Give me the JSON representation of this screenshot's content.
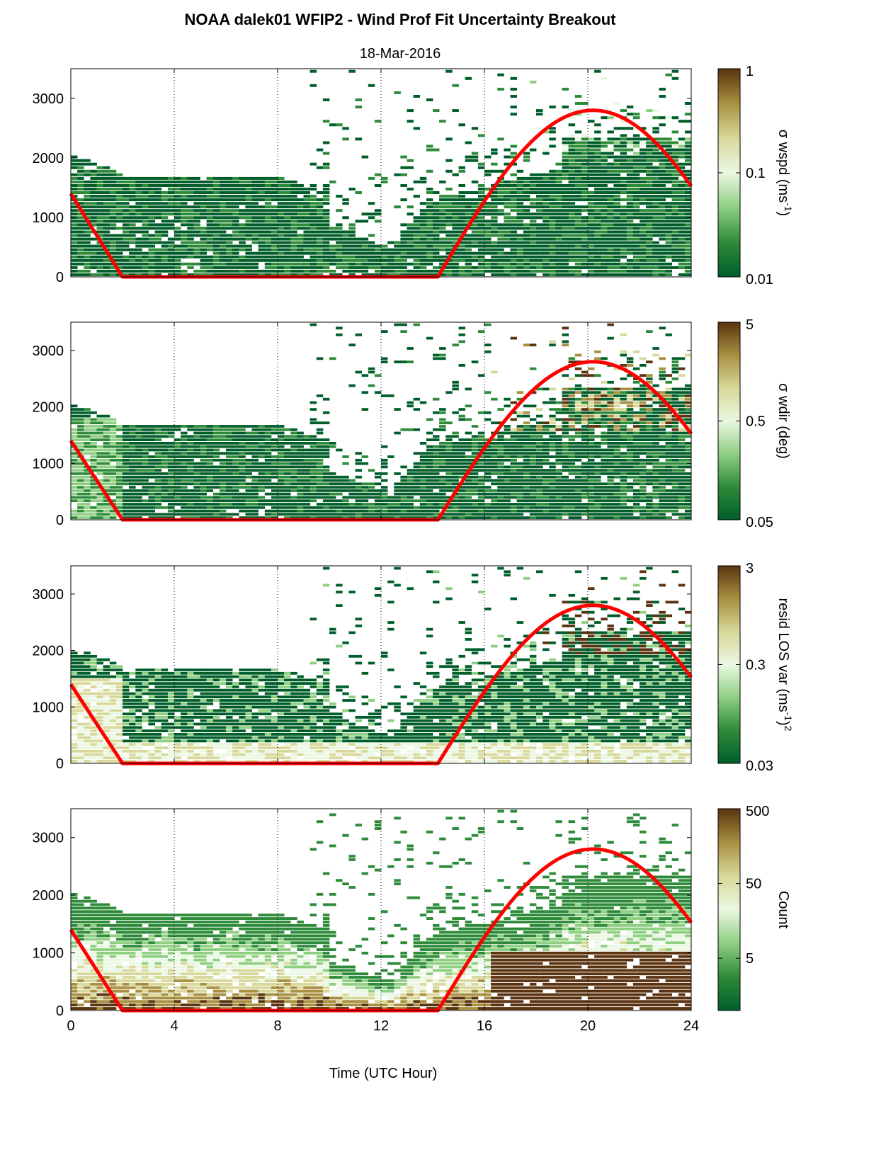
{
  "figure": {
    "title": "NOAA dalek01 WFIP2 - Wind Prof Fit Uncertainty Breakout",
    "subtitle": "18-Mar-2016",
    "xlabel": "Time (UTC Hour)"
  },
  "chart_data": [
    {
      "type": "heatmap",
      "xlim": [
        0,
        24
      ],
      "ylim": [
        0,
        3500
      ],
      "xticks": [
        0,
        4,
        8,
        12,
        16,
        20,
        24
      ],
      "yticks": [
        0,
        1000,
        2000,
        3000
      ],
      "grid": "vertical dotted lines at 4, 8, 12, 16, 20",
      "overlay": {
        "name": "",
        "color": "#ff0000",
        "points": [
          [
            0,
            1400
          ],
          [
            2,
            0
          ],
          [
            14.2,
            0
          ],
          [
            16,
            1200
          ],
          [
            18,
            2300
          ],
          [
            20.2,
            2800
          ],
          [
            22,
            2500
          ],
          [
            24,
            1600
          ]
        ]
      },
      "colorbar": {
        "label": "σ wspd (ms",
        "label_sup": "-1",
        "label_end": ")",
        "scale": "log",
        "ticks": [
          "1",
          "0.1",
          "0.01"
        ],
        "range": [
          0.01,
          1
        ]
      }
    },
    {
      "type": "heatmap",
      "xlim": [
        0,
        24
      ],
      "ylim": [
        0,
        3500
      ],
      "xticks": [
        0,
        4,
        8,
        12,
        16,
        20,
        24
      ],
      "yticks": [
        0,
        1000,
        2000,
        3000
      ],
      "grid": "vertical dotted lines at 4, 8, 12, 16, 20",
      "overlay": {
        "name": "",
        "color": "#ff0000",
        "points": [
          [
            0,
            1400
          ],
          [
            2,
            0
          ],
          [
            14.2,
            0
          ],
          [
            16,
            1200
          ],
          [
            18,
            2300
          ],
          [
            20.2,
            2800
          ],
          [
            22,
            2500
          ],
          [
            24,
            1600
          ]
        ]
      },
      "colorbar": {
        "label": "σ wdir (deg)",
        "label_sup": "",
        "label_end": "",
        "scale": "log",
        "ticks": [
          "5",
          "0.5",
          "0.05"
        ],
        "range": [
          0.05,
          5
        ]
      }
    },
    {
      "type": "heatmap",
      "xlim": [
        0,
        24
      ],
      "ylim": [
        0,
        3500
      ],
      "xticks": [
        0,
        4,
        8,
        12,
        16,
        20,
        24
      ],
      "yticks": [
        0,
        1000,
        2000,
        3000
      ],
      "grid": "vertical dotted lines at 4, 8, 12, 16, 20",
      "overlay": {
        "name": "",
        "color": "#ff0000",
        "points": [
          [
            0,
            1400
          ],
          [
            2,
            0
          ],
          [
            14.2,
            0
          ],
          [
            16,
            1200
          ],
          [
            18,
            2300
          ],
          [
            20.2,
            2800
          ],
          [
            22,
            2500
          ],
          [
            24,
            1600
          ]
        ]
      },
      "colorbar": {
        "label": "resid LOS var (ms",
        "label_sup": "-1",
        "label_end": ")",
        "label_sup2": "2",
        "scale": "log",
        "ticks": [
          "3",
          "0.3",
          "0.03"
        ],
        "range": [
          0.03,
          3
        ]
      }
    },
    {
      "type": "heatmap",
      "xlim": [
        0,
        24
      ],
      "ylim": [
        0,
        3500
      ],
      "xticks": [
        0,
        4,
        8,
        12,
        16,
        20,
        24
      ],
      "yticks": [
        0,
        1000,
        2000,
        3000
      ],
      "grid": "vertical dotted lines at 4, 8, 12, 16, 20",
      "overlay": {
        "name": "",
        "color": "#ff0000",
        "points": [
          [
            0,
            1400
          ],
          [
            2,
            0
          ],
          [
            14.2,
            0
          ],
          [
            16,
            1200
          ],
          [
            18,
            2300
          ],
          [
            20.2,
            2800
          ],
          [
            22,
            2500
          ],
          [
            24,
            1600
          ]
        ]
      },
      "colorbar": {
        "label": "Count",
        "label_sup": "",
        "label_end": "",
        "scale": "log",
        "ticks": [
          "500",
          "50",
          "5"
        ],
        "range": [
          1,
          500
        ]
      }
    }
  ],
  "colormap": [
    "#005e2a",
    "#2e8b3a",
    "#8fcf82",
    "#eaf7e2",
    "#d8d89a",
    "#a89040",
    "#5b3310"
  ]
}
